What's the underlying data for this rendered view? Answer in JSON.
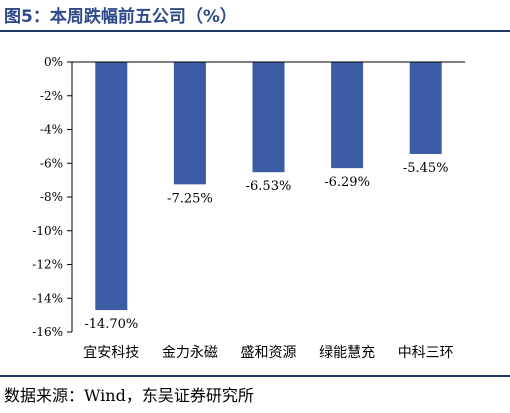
{
  "title": "图5：本周跌幅前五公司（%）",
  "source": "数据来源：Wind，东吴证券研究所",
  "chart_data": {
    "type": "bar",
    "categories": [
      "宜安科技",
      "金力永磁",
      "盛和资源",
      "绿能慧充",
      "中科三环"
    ],
    "values": [
      -14.7,
      -7.25,
      -6.53,
      -6.29,
      -5.45
    ],
    "data_labels": [
      "-14.70%",
      "-7.25%",
      "-6.53%",
      "-6.29%",
      "-5.45%"
    ],
    "y_ticks": [
      0,
      -2,
      -4,
      -6,
      -8,
      -10,
      -12,
      -14,
      -16
    ],
    "y_tick_labels": [
      "0%",
      "-2%",
      "-4%",
      "-6%",
      "-8%",
      "-10%",
      "-12%",
      "-14%",
      "-16%"
    ],
    "ylim": [
      -16,
      0
    ],
    "bar_color": "#3b5ba5",
    "grid": false,
    "legend": "none"
  }
}
